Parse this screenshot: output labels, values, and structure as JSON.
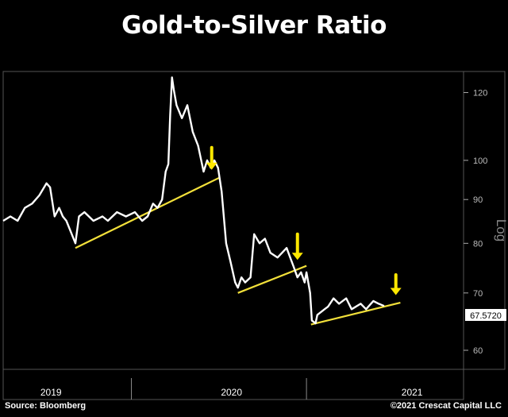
{
  "title": "Gold-to-Silver Ratio",
  "source": "Source: Bloomberg",
  "copyright": "©2021 Crescat Capital LLC",
  "colors": {
    "background": "#000000",
    "line": "#ffffff",
    "trend": "#f2e03a",
    "arrow": "#ffe800",
    "grid": "#6d6d6d"
  },
  "chart_data": {
    "type": "line",
    "scale": "log",
    "ylabel": "Log",
    "ylim": [
      57,
      127
    ],
    "y_ticks": [
      60,
      70,
      80,
      90,
      100,
      120
    ],
    "x_ticks": [
      "2019",
      "2020",
      "2021"
    ],
    "last_value_label": "67.5720",
    "series": [
      {
        "values": [
          [
            2018.7,
            85
          ],
          [
            2018.74,
            86
          ],
          [
            2018.78,
            85
          ],
          [
            2018.82,
            88
          ],
          [
            2018.86,
            89
          ],
          [
            2018.9,
            91
          ],
          [
            2018.94,
            94
          ],
          [
            2018.96,
            93
          ],
          [
            2018.985,
            86
          ],
          [
            2019.01,
            88
          ],
          [
            2019.03,
            86
          ],
          [
            2019.05,
            85
          ],
          [
            2019.08,
            82
          ],
          [
            2019.1,
            80
          ],
          [
            2019.12,
            86
          ],
          [
            2019.15,
            87
          ],
          [
            2019.2,
            85
          ],
          [
            2019.25,
            86
          ],
          [
            2019.28,
            85
          ],
          [
            2019.33,
            87
          ],
          [
            2019.38,
            86
          ],
          [
            2019.43,
            87
          ],
          [
            2019.47,
            85
          ],
          [
            2019.5,
            86
          ],
          [
            2019.53,
            89
          ],
          [
            2019.555,
            88
          ],
          [
            2019.58,
            90
          ],
          [
            2019.6,
            97
          ],
          [
            2019.615,
            99
          ],
          [
            2019.625,
            113
          ],
          [
            2019.635,
            125
          ],
          [
            2019.645,
            121
          ],
          [
            2019.66,
            116
          ],
          [
            2019.69,
            112
          ],
          [
            2019.72,
            116
          ],
          [
            2019.75,
            108
          ],
          [
            2019.78,
            104
          ],
          [
            2019.81,
            97
          ],
          [
            2019.83,
            100
          ],
          [
            2019.85,
            98
          ],
          [
            2019.87,
            100
          ],
          [
            2019.89,
            98
          ],
          [
            2019.91,
            92
          ],
          [
            2019.935,
            80
          ],
          [
            2019.96,
            76
          ],
          [
            2019.985,
            72
          ],
          [
            2020.0,
            71
          ],
          [
            2020.02,
            73
          ],
          [
            2020.04,
            72
          ],
          [
            2020.07,
            73
          ],
          [
            2020.09,
            82
          ],
          [
            2020.12,
            80
          ],
          [
            2020.15,
            81
          ],
          [
            2020.18,
            78
          ],
          [
            2020.22,
            77
          ],
          [
            2020.27,
            79
          ],
          [
            2020.31,
            75
          ],
          [
            2020.33,
            73
          ],
          [
            2020.35,
            74
          ],
          [
            2020.37,
            72
          ],
          [
            2020.38,
            74
          ],
          [
            2020.4,
            70
          ],
          [
            2020.41,
            65
          ],
          [
            2020.43,
            64.5
          ],
          [
            2020.44,
            66
          ],
          [
            2020.48,
            67
          ],
          [
            2020.5,
            67.5
          ],
          [
            2020.53,
            69
          ],
          [
            2020.56,
            68
          ],
          [
            2020.6,
            69
          ],
          [
            2020.63,
            67
          ],
          [
            2020.68,
            68
          ],
          [
            2020.71,
            67
          ],
          [
            2020.75,
            68.5
          ],
          [
            2020.78,
            68
          ],
          [
            2020.81,
            67.6
          ]
        ]
      }
    ],
    "trendlines": [
      {
        "from": [
          2019.1,
          79
        ],
        "to": [
          2019.9,
          95.5
        ]
      },
      {
        "from": [
          2020.0,
          70
        ],
        "to": [
          2020.38,
          75.3
        ]
      },
      {
        "from": [
          2020.405,
          64.3
        ],
        "to": [
          2020.9,
          68.2
        ]
      }
    ],
    "arrows": [
      {
        "x": 2019.855,
        "y_top": 103.5,
        "y_bottom": 97.5
      },
      {
        "x": 2020.33,
        "y_top": 82,
        "y_bottom": 76.5
      },
      {
        "x": 2020.875,
        "y_top": 73.5,
        "y_bottom": 69.6
      }
    ]
  }
}
